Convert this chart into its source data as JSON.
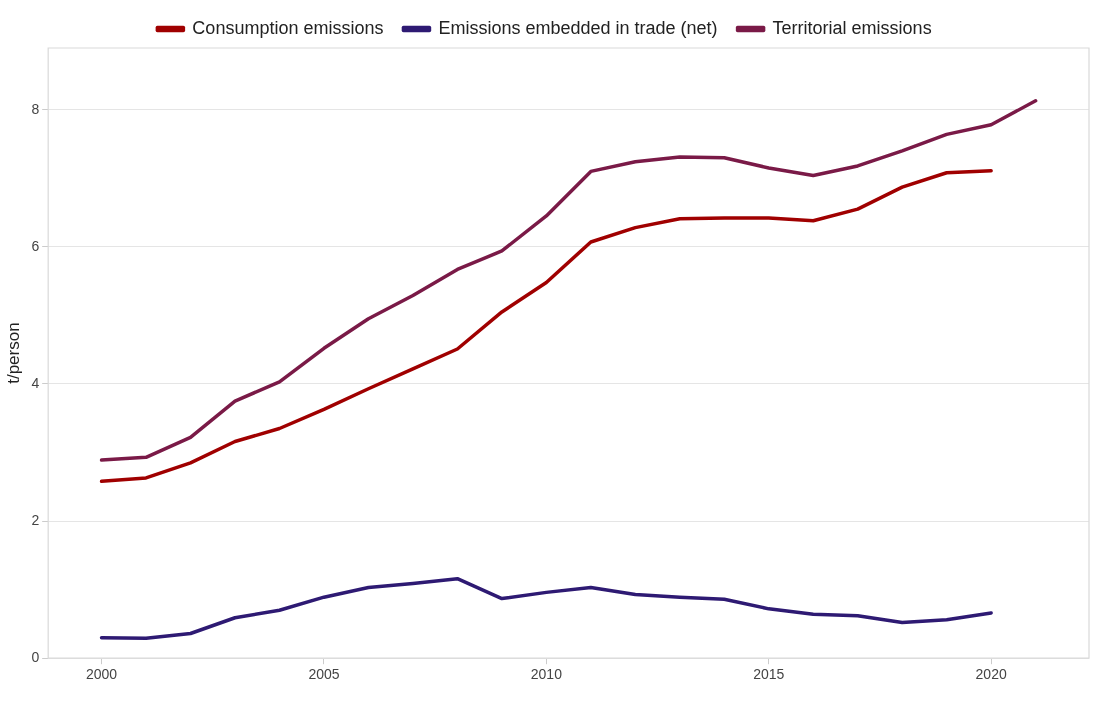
{
  "chart_data": {
    "type": "line",
    "ylabel": "t/person",
    "x": [
      2000,
      2001,
      2002,
      2003,
      2004,
      2005,
      2006,
      2007,
      2008,
      2009,
      2010,
      2011,
      2012,
      2013,
      2014,
      2015,
      2016,
      2017,
      2018,
      2019,
      2020,
      2021
    ],
    "series": [
      {
        "name": "Consumption emissions",
        "color": "#a00000",
        "values": [
          2.58,
          2.63,
          2.85,
          3.16,
          3.35,
          3.63,
          3.93,
          4.22,
          4.51,
          5.05,
          5.48,
          6.07,
          6.28,
          6.41,
          6.42,
          6.42,
          6.38,
          6.55,
          6.87,
          7.08,
          7.11,
          null
        ]
      },
      {
        "name": "Emissions embedded in trade (net)",
        "color": "#2e1a73",
        "values": [
          0.3,
          0.29,
          0.36,
          0.59,
          0.7,
          0.89,
          1.03,
          1.09,
          1.16,
          0.87,
          0.96,
          1.03,
          0.93,
          0.89,
          0.86,
          0.72,
          0.64,
          0.62,
          0.52,
          0.56,
          0.66,
          null
        ]
      },
      {
        "name": "Territorial emissions",
        "color": "#7a1a47",
        "values": [
          2.89,
          2.93,
          3.22,
          3.75,
          4.03,
          4.52,
          4.95,
          5.29,
          5.67,
          5.94,
          6.45,
          7.1,
          7.24,
          7.31,
          7.3,
          7.15,
          7.04,
          7.18,
          7.4,
          7.64,
          7.78,
          8.13
        ]
      }
    ],
    "xlim": [
      1998.8,
      2022.2
    ],
    "xticks": [
      2000,
      2005,
      2010,
      2015,
      2020
    ],
    "ylim": [
      0,
      8.9
    ],
    "yticks": [
      0,
      2,
      4,
      6,
      8
    ],
    "grid": "y",
    "legend": "top",
    "marker": "none",
    "line_style": "solid"
  }
}
